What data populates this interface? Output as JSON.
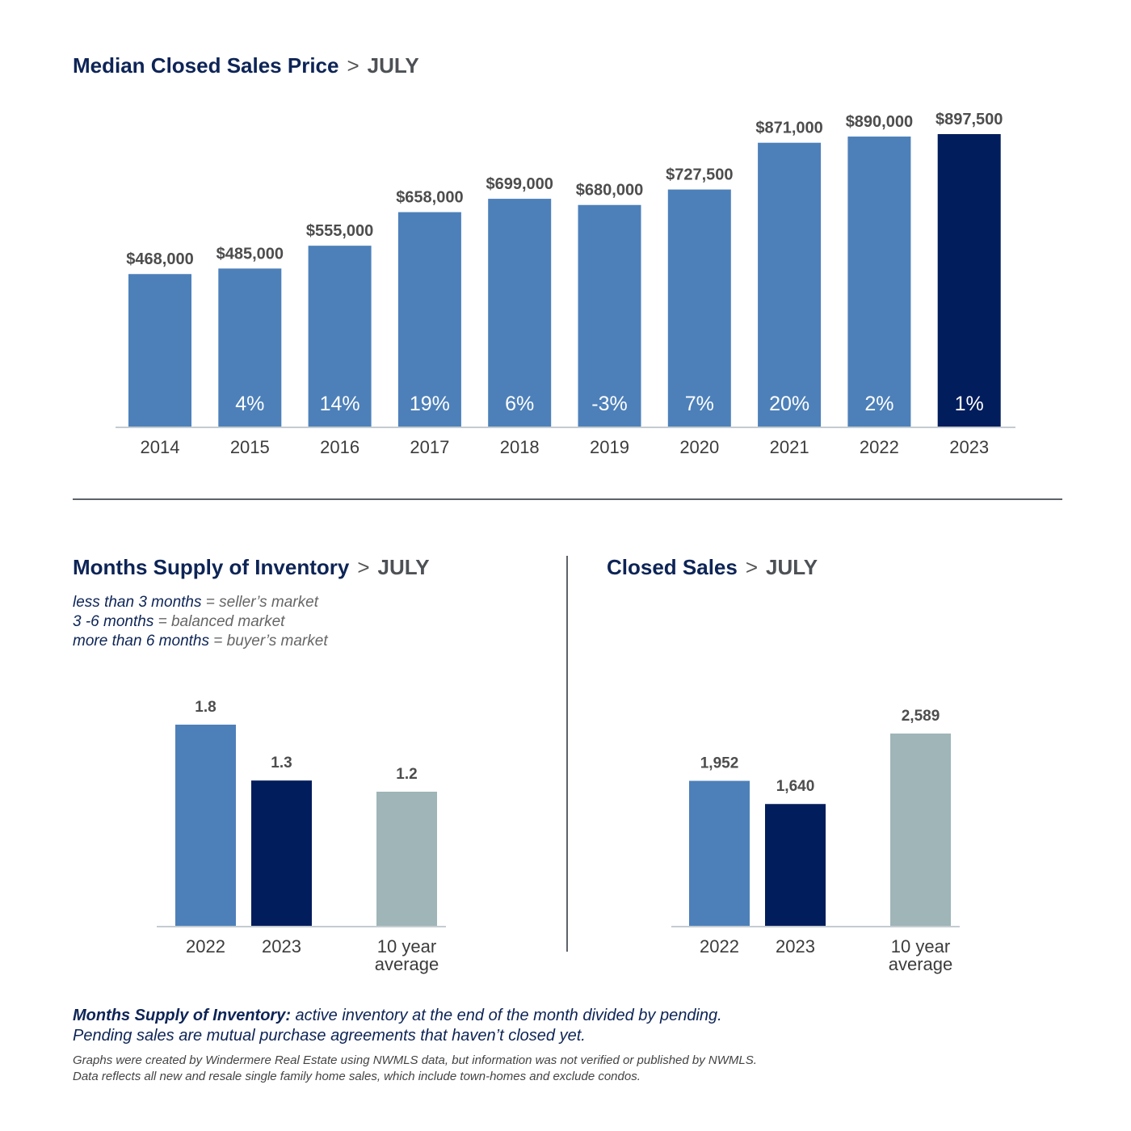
{
  "colors": {
    "bar_primary": "#4d80b9",
    "bar_highlight": "#021d5c",
    "bar_average": "#9fb5b8",
    "axis": "#c5ccd0",
    "divider": "#5c6369"
  },
  "top_chart": {
    "title_main": "Median Closed Sales Price",
    "separator": ">",
    "title_month": "JULY"
  },
  "inventory_chart": {
    "title_main": "Months Supply of Inventory",
    "separator": ">",
    "title_month": "JULY",
    "legend": [
      {
        "term": "less than 3 months",
        "desc": " = seller’s market"
      },
      {
        "term": "3 -6 months",
        "desc": " = balanced market"
      },
      {
        "term": "more than 6 months",
        "desc": " = buyer’s market"
      }
    ]
  },
  "sales_chart": {
    "title_main": "Closed Sales",
    "separator": ">",
    "title_month": "JULY"
  },
  "footnote": {
    "term": "Months Supply of Inventory:",
    "line1_rest": " active inventory at the end of the month divided by pending.",
    "line2": "Pending sales are mutual purchase agreements that haven’t closed yet."
  },
  "disclaimer": {
    "line1": "Graphs were created by Windermere Real Estate using NWMLS data, but information was not verified or published by NWMLS.",
    "line2": "Data reflects all new and resale single family home sales, which include town-homes and exclude condos."
  },
  "chart_data": [
    {
      "type": "bar",
      "title": "Median Closed Sales Price > JULY",
      "categories": [
        "2014",
        "2015",
        "2016",
        "2017",
        "2018",
        "2019",
        "2020",
        "2021",
        "2022",
        "2023"
      ],
      "values": [
        468000,
        485000,
        555000,
        658000,
        699000,
        680000,
        727500,
        871000,
        890000,
        897500
      ],
      "value_labels": [
        "$468,000",
        "$485,000",
        "$555,000",
        "$658,000",
        "$699,000",
        "$680,000",
        "$727,500",
        "$871,000",
        "$890,000",
        "$897,500"
      ],
      "change_labels": [
        "",
        "4%",
        "14%",
        "19%",
        "6%",
        "-3%",
        "7%",
        "20%",
        "2%",
        "1%"
      ],
      "highlight_index": 9,
      "ylim": [
        0,
        900000
      ],
      "grid": false
    },
    {
      "type": "bar",
      "title": "Months Supply of Inventory > JULY",
      "categories": [
        "2022",
        "2023",
        "10 year average"
      ],
      "values": [
        1.8,
        1.3,
        1.2
      ],
      "value_labels": [
        "1.8",
        "1.3",
        "1.2"
      ],
      "ylim": [
        0,
        1.8
      ],
      "grid": false
    },
    {
      "type": "bar",
      "title": "Closed Sales > JULY",
      "categories": [
        "2022",
        "2023",
        "10 year average"
      ],
      "values": [
        1952,
        1640,
        2589
      ],
      "value_labels": [
        "1,952",
        "1,640",
        "2,589"
      ],
      "ylim": [
        0,
        2589
      ],
      "grid": false
    }
  ]
}
